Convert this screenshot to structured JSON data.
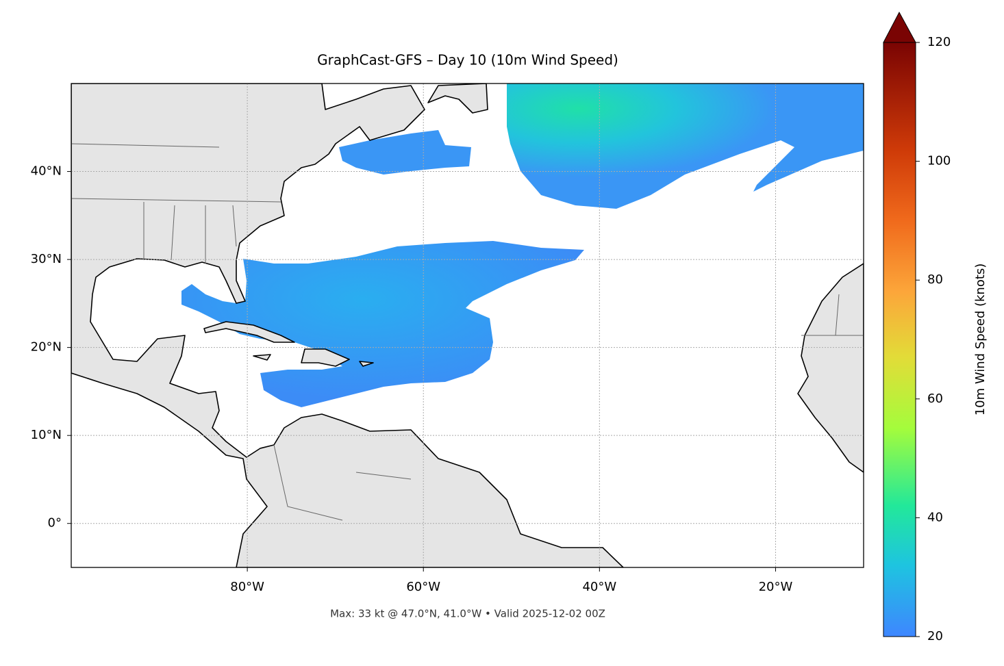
{
  "chart_data": {
    "type": "map",
    "title": "GraphCast-GFS – Day 10 (10m Wind Speed)",
    "footer": "Max: 33 kt @ 47.0°N, 41.0°W • Valid 2025-12-02 00Z",
    "xlim": [
      -100,
      -10
    ],
    "ylim": [
      -5,
      50
    ],
    "xticks": [
      {
        "value": -80,
        "label": "80°W"
      },
      {
        "value": -60,
        "label": "60°W"
      },
      {
        "value": -40,
        "label": "40°W"
      },
      {
        "value": -20,
        "label": "20°W"
      }
    ],
    "yticks": [
      {
        "value": 0,
        "label": "0°"
      },
      {
        "value": 10,
        "label": "10°N"
      },
      {
        "value": 20,
        "label": "20°N"
      },
      {
        "value": 30,
        "label": "30°N"
      },
      {
        "value": 40,
        "label": "40°N"
      }
    ],
    "grid": true,
    "colorbar": {
      "label": "10m Wind Speed (knots)",
      "lim": [
        20,
        120
      ],
      "ticks": [
        20,
        40,
        60,
        80,
        100,
        120
      ],
      "extend": "max"
    }
  }
}
